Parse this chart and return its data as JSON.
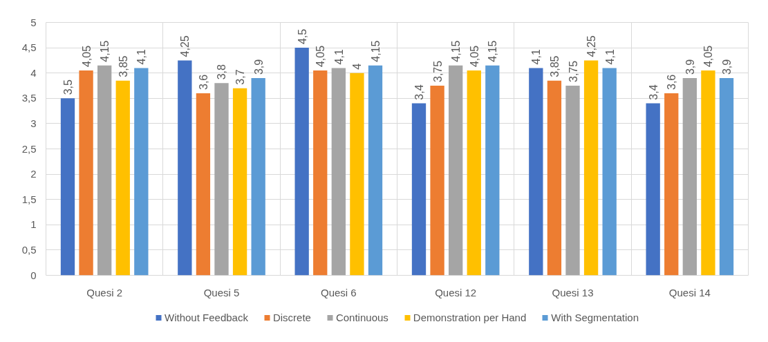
{
  "chart_data": {
    "type": "bar",
    "categories": [
      "Quesi 2",
      "Quesi 5",
      "Quesi 6",
      "Quesi 12",
      "Quesi 13",
      "Quesi 14"
    ],
    "series": [
      {
        "name": "Without Feedback",
        "color": "#4472c4",
        "values": [
          3.5,
          4.25,
          4.5,
          3.4,
          4.1,
          3.4
        ],
        "value_labels": [
          "3,5",
          "4,25",
          "4,5",
          "3,4",
          "4,1",
          "3,4"
        ]
      },
      {
        "name": "Discrete",
        "color": "#ed7d31",
        "values": [
          4.05,
          3.6,
          4.05,
          3.75,
          3.85,
          3.6
        ],
        "value_labels": [
          "4,05",
          "3,6",
          "4,05",
          "3,75",
          "3,85",
          "3,6"
        ]
      },
      {
        "name": "Continuous",
        "color": "#a5a5a5",
        "values": [
          4.15,
          3.8,
          4.1,
          4.15,
          3.75,
          3.9
        ],
        "value_labels": [
          "4,15",
          "3,8",
          "4,1",
          "4,15",
          "3,75",
          "3,9"
        ]
      },
      {
        "name": "Demonstration per Hand",
        "color": "#ffc000",
        "values": [
          3.85,
          3.7,
          4.0,
          4.05,
          4.25,
          4.05
        ],
        "value_labels": [
          "3,85",
          "3,7",
          "4",
          "4,05",
          "4,25",
          "4,05"
        ]
      },
      {
        "name": "With Segmentation",
        "color": "#5b9bd5",
        "values": [
          4.1,
          3.9,
          4.15,
          4.15,
          4.1,
          3.9
        ],
        "value_labels": [
          "4,1",
          "3,9",
          "4,15",
          "4,15",
          "4,1",
          "3,9"
        ]
      }
    ],
    "ylim": [
      0,
      5
    ],
    "yticks": [
      0,
      {
        "value": 0.5,
        "label": "0,5"
      },
      1,
      {
        "value": 1.5,
        "label": "1,5"
      },
      2,
      {
        "value": 2.5,
        "label": "2,5"
      },
      3,
      {
        "value": 3.5,
        "label": "3,5"
      },
      4,
      {
        "value": 4.5,
        "label": "4,5"
      },
      5
    ],
    "grid": true,
    "legend": "bottom"
  }
}
